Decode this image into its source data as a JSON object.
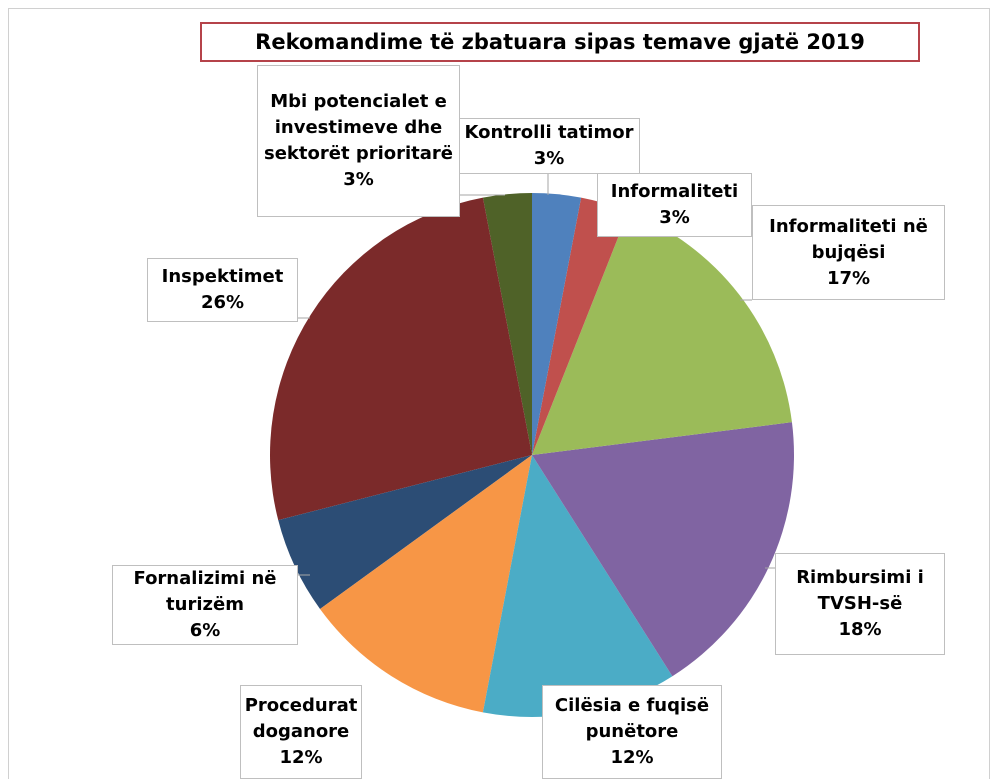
{
  "chart_data": {
    "type": "pie",
    "title": "Rekomandime të zbatuara sipas temave gjatë 2019",
    "categories": [
      "Kontrolli tatimor",
      "Informaliteti",
      "Informaliteti në bujqësi",
      "Rimbursimi i TVSH-së",
      "Cilësia e fuqisë punëtore",
      "Procedurat doganore",
      "Fornalizimi në turizëm",
      "Inspektimet",
      "Mbi potencialet e investimeve dhe sektorët prioritarë"
    ],
    "values": [
      3,
      3,
      17,
      18,
      12,
      12,
      6,
      26,
      3
    ],
    "value_labels": [
      "3%",
      "3%",
      "17%",
      "18%",
      "12%",
      "12%",
      "6%",
      "26%",
      "3%"
    ],
    "colors": [
      "#4f81bd",
      "#c0504d",
      "#9bbb59",
      "#8064a2",
      "#4bacc6",
      "#f79646",
      "#2c4d75",
      "#7b2a2a",
      "#4f6228"
    ]
  }
}
